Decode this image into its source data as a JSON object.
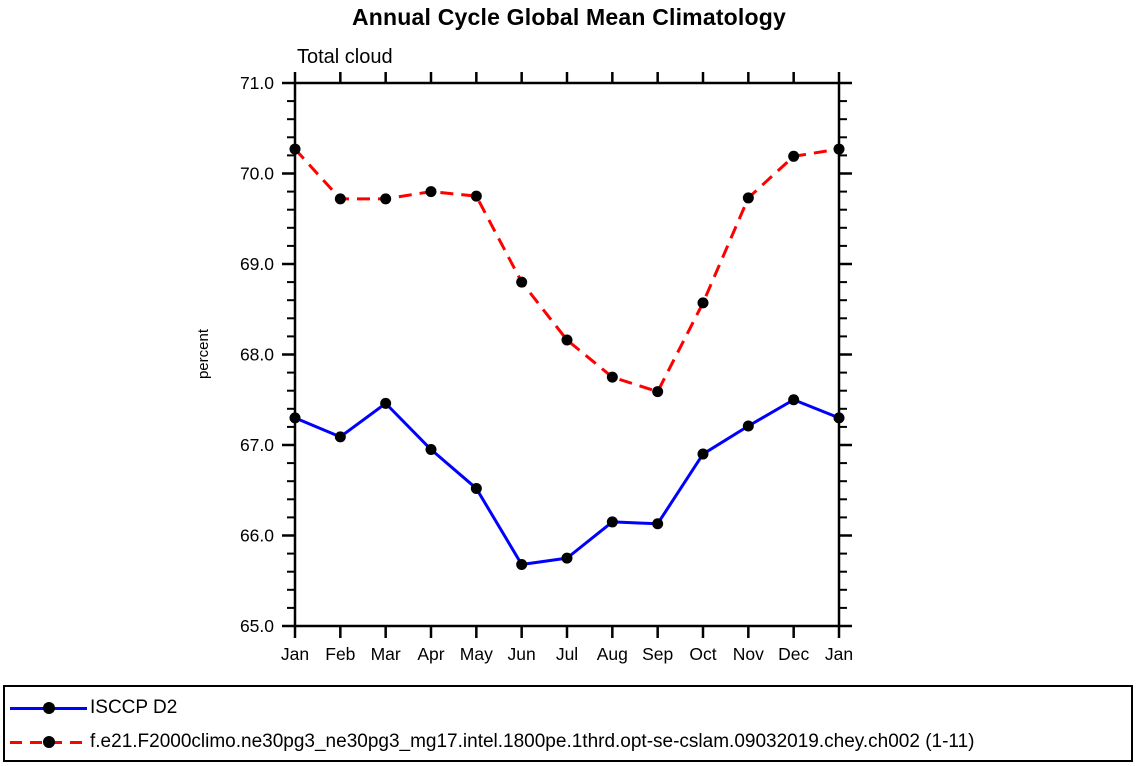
{
  "chart": {
    "title": "Annual Cycle Global Mean Climatology",
    "subtitle": "Total cloud",
    "ylabel": "percent"
  },
  "chart_data": {
    "type": "line",
    "title": "Annual Cycle Global Mean Climatology",
    "subtitle": "Total cloud",
    "xlabel": "",
    "ylabel": "percent",
    "categories": [
      "Jan",
      "Feb",
      "Mar",
      "Apr",
      "May",
      "Jun",
      "Jul",
      "Aug",
      "Sep",
      "Oct",
      "Nov",
      "Dec",
      "Jan"
    ],
    "series": [
      {
        "name": "ISCCP D2",
        "color": "#0000ff",
        "line_style": "solid",
        "marker": "circle",
        "marker_color": "#000000",
        "values": [
          67.3,
          67.09,
          67.46,
          66.95,
          66.52,
          65.68,
          65.75,
          66.15,
          66.13,
          66.9,
          67.21,
          67.5,
          67.3
        ]
      },
      {
        "name": "f.e21.F2000climo.ne30pg3_ne30pg3_mg17.intel.1800pe.1thrd.opt-se-cslam.09032019.chey.ch002 (1-11)",
        "color": "#ff0000",
        "line_style": "dashed",
        "marker": "circle",
        "marker_color": "#000000",
        "values": [
          70.27,
          69.72,
          69.72,
          69.8,
          69.75,
          68.8,
          68.16,
          67.75,
          67.59,
          68.57,
          69.73,
          70.19,
          70.27
        ]
      }
    ],
    "ylim": [
      65.0,
      71.0
    ],
    "ytick_major": 1.0,
    "ytick_minor": 0.2,
    "ytick_labels": [
      "65.0",
      "66.0",
      "67.0",
      "68.0",
      "69.0",
      "70.0",
      "71.0"
    ],
    "tick_direction": "out",
    "grid": false,
    "legend_position": "bottom"
  },
  "legend": {
    "items": [
      {
        "label": "ISCCP D2"
      },
      {
        "label": "f.e21.F2000climo.ne30pg3_ne30pg3_mg17.intel.1800pe.1thrd.opt-se-cslam.09032019.chey.ch002 (1-11)"
      }
    ]
  }
}
